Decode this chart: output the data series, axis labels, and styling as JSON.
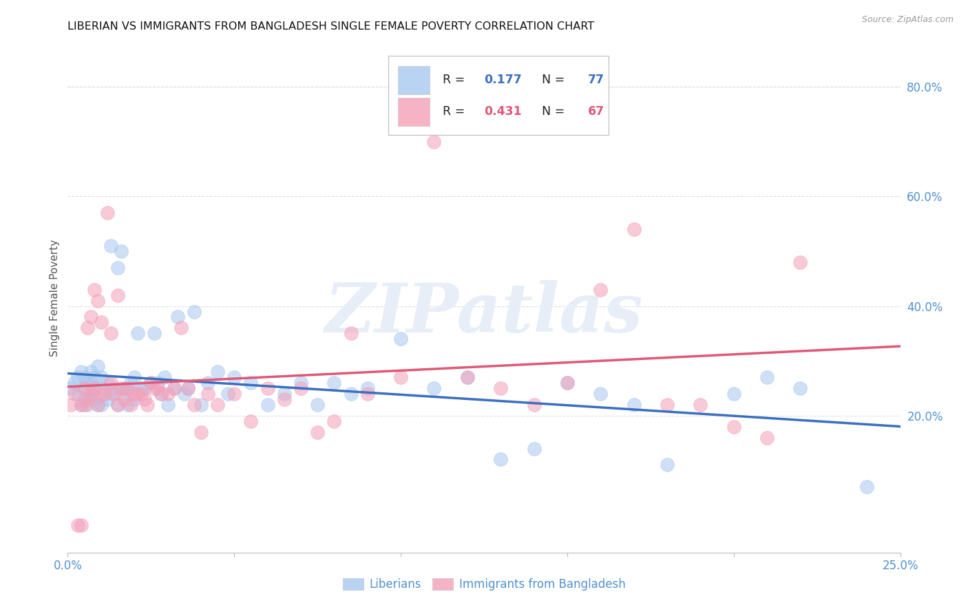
{
  "title": "LIBERIAN VS IMMIGRANTS FROM BANGLADESH SINGLE FEMALE POVERTY CORRELATION CHART",
  "source": "Source: ZipAtlas.com",
  "ylabel": "Single Female Poverty",
  "xlim": [
    0.0,
    0.25
  ],
  "ylim": [
    -0.05,
    0.88
  ],
  "liberian_R": 0.177,
  "liberian_N": 77,
  "bangladesh_R": 0.431,
  "bangladesh_N": 67,
  "liberian_color": "#A8C8F0",
  "bangladesh_color": "#F4A0B8",
  "liberian_line_color": "#3B6FBF",
  "bangladesh_line_color": "#E05878",
  "text_color_dark": "#222222",
  "text_color_blue": "#3B6FBF",
  "text_color_pink": "#E05878",
  "axis_color": "#5090D0",
  "background_color": "#FFFFFF",
  "liberian_x": [
    0.001,
    0.002,
    0.003,
    0.003,
    0.004,
    0.004,
    0.005,
    0.005,
    0.005,
    0.006,
    0.006,
    0.007,
    0.007,
    0.007,
    0.008,
    0.008,
    0.008,
    0.009,
    0.009,
    0.01,
    0.01,
    0.01,
    0.012,
    0.012,
    0.013,
    0.013,
    0.014,
    0.015,
    0.015,
    0.016,
    0.016,
    0.017,
    0.018,
    0.018,
    0.019,
    0.02,
    0.02,
    0.021,
    0.022,
    0.023,
    0.025,
    0.026,
    0.027,
    0.028,
    0.029,
    0.03,
    0.032,
    0.033,
    0.035,
    0.036,
    0.038,
    0.04,
    0.042,
    0.045,
    0.048,
    0.05,
    0.055,
    0.06,
    0.065,
    0.07,
    0.075,
    0.08,
    0.085,
    0.09,
    0.1,
    0.11,
    0.12,
    0.13,
    0.14,
    0.15,
    0.16,
    0.17,
    0.18,
    0.2,
    0.21,
    0.22,
    0.24
  ],
  "liberian_y": [
    0.25,
    0.26,
    0.24,
    0.27,
    0.22,
    0.28,
    0.23,
    0.25,
    0.27,
    0.22,
    0.26,
    0.24,
    0.26,
    0.28,
    0.23,
    0.25,
    0.27,
    0.22,
    0.29,
    0.22,
    0.25,
    0.27,
    0.23,
    0.26,
    0.24,
    0.51,
    0.25,
    0.22,
    0.47,
    0.24,
    0.5,
    0.25,
    0.22,
    0.25,
    0.26,
    0.23,
    0.27,
    0.35,
    0.25,
    0.25,
    0.26,
    0.35,
    0.26,
    0.24,
    0.27,
    0.22,
    0.25,
    0.38,
    0.24,
    0.25,
    0.39,
    0.22,
    0.26,
    0.28,
    0.24,
    0.27,
    0.26,
    0.22,
    0.24,
    0.26,
    0.22,
    0.26,
    0.24,
    0.25,
    0.34,
    0.25,
    0.27,
    0.12,
    0.14,
    0.26,
    0.24,
    0.22,
    0.11,
    0.24,
    0.27,
    0.25,
    0.07
  ],
  "bangladesh_x": [
    0.001,
    0.002,
    0.003,
    0.004,
    0.004,
    0.005,
    0.005,
    0.006,
    0.006,
    0.007,
    0.007,
    0.008,
    0.008,
    0.009,
    0.009,
    0.01,
    0.01,
    0.011,
    0.012,
    0.013,
    0.013,
    0.014,
    0.015,
    0.015,
    0.016,
    0.017,
    0.018,
    0.019,
    0.02,
    0.021,
    0.022,
    0.023,
    0.024,
    0.025,
    0.026,
    0.027,
    0.028,
    0.03,
    0.032,
    0.034,
    0.036,
    0.038,
    0.04,
    0.042,
    0.045,
    0.05,
    0.055,
    0.06,
    0.065,
    0.07,
    0.075,
    0.08,
    0.085,
    0.09,
    0.1,
    0.11,
    0.12,
    0.13,
    0.14,
    0.15,
    0.16,
    0.17,
    0.18,
    0.19,
    0.2,
    0.21,
    0.22
  ],
  "bangladesh_y": [
    0.22,
    0.24,
    0.0,
    0.22,
    0.0,
    0.22,
    0.25,
    0.23,
    0.36,
    0.24,
    0.38,
    0.25,
    0.43,
    0.22,
    0.41,
    0.24,
    0.37,
    0.24,
    0.57,
    0.26,
    0.35,
    0.24,
    0.22,
    0.42,
    0.25,
    0.23,
    0.25,
    0.22,
    0.24,
    0.24,
    0.24,
    0.23,
    0.22,
    0.26,
    0.25,
    0.25,
    0.24,
    0.24,
    0.25,
    0.36,
    0.25,
    0.22,
    0.17,
    0.24,
    0.22,
    0.24,
    0.19,
    0.25,
    0.23,
    0.25,
    0.17,
    0.19,
    0.35,
    0.24,
    0.27,
    0.7,
    0.27,
    0.25,
    0.22,
    0.26,
    0.43,
    0.54,
    0.22,
    0.22,
    0.18,
    0.16,
    0.48
  ],
  "watermark_text": "ZIPatlas",
  "watermark_color": "#E8EEF8",
  "grid_color": "#DDDDDD",
  "legend_box_color": "#AAAAAA"
}
